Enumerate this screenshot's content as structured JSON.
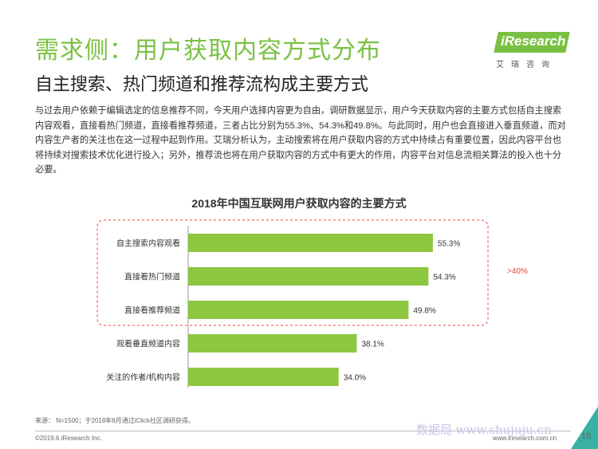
{
  "header": {
    "title": "需求侧：用户获取内容方式分布",
    "subtitle": "自主搜索、热门频道和推荐流构成主要方式",
    "logo_text": "iResearch",
    "logo_sub": "艾瑞咨询"
  },
  "body": {
    "paragraph": "与过去用户依赖于编辑选定的信息推荐不同，今天用户选择内容更为自由，调研数据显示，用户今天获取内容的主要方式包括自主搜索内容观看，直接看热门频道，直接看推荐频道，三者占比分别为55.3%、54.3%和49.8%。与此同时，用户也会直接进入垂直频道，而对内容生产者的关注也在这一过程中起到作用。艾瑞分析认为，主动搜索将在用户获取内容的方式中持续占有重要位置，因此内容平台也将持续对搜索技术优化进行投入；另外，推荐流也将在用户获取内容的方式中有更大的作用，内容平台对信息流相关算法的投入也十分必要。"
  },
  "chart_data": {
    "type": "bar",
    "orientation": "horizontal",
    "title": "2018年中国互联网用户获取内容的主要方式",
    "categories": [
      "自主搜索内容观看",
      "直接看热门频道",
      "直接看推荐频道",
      "观看垂直频道内容",
      "关注的作者/机构内容"
    ],
    "values": [
      55.3,
      54.3,
      49.8,
      38.1,
      34.0
    ],
    "value_labels": [
      "55.3%",
      "54.3%",
      "49.8%",
      "38.1%",
      "34.0%"
    ],
    "bar_color": "#8dc63f",
    "highlight_color": "#e8463c",
    "annotation": ">40%",
    "xlim": [
      0,
      60
    ]
  },
  "footer": {
    "source": "来源： N=1500；于2018年8月通过iClick社区调研获得。",
    "copyright": "©2019.6 iResearch Inc.",
    "website": "www.iresearch.com.cn",
    "page": "19",
    "watermark": "数据局 www.shujuju.cn"
  }
}
